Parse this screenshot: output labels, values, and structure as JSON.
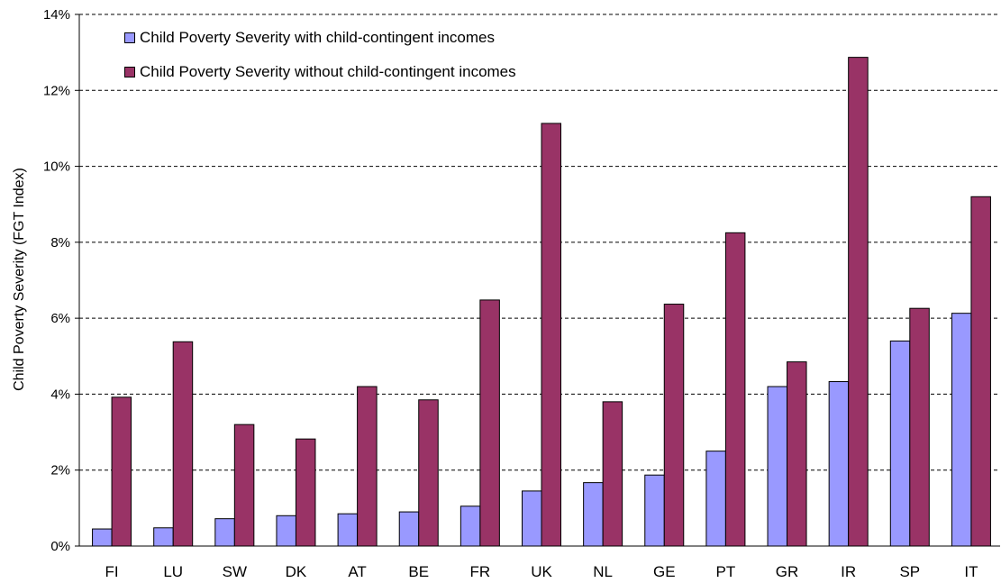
{
  "chart_data": {
    "type": "bar",
    "title": "",
    "xlabel": "",
    "ylabel": "Child Poverty Severity (FGT Index)",
    "ylim": [
      0,
      0.14
    ],
    "yticks": [
      "0%",
      "2%",
      "4%",
      "6%",
      "8%",
      "10%",
      "12%",
      "14%"
    ],
    "grid": "dashed horizontal",
    "legend_position": "top-left",
    "categories": [
      "FI",
      "LU",
      "SW",
      "DK",
      "AT",
      "BE",
      "FR",
      "UK",
      "NL",
      "GE",
      "PT",
      "GR",
      "IR",
      "SP",
      "IT"
    ],
    "series": [
      {
        "name": "Child Poverty Severity with child-contingent incomes",
        "color": "#9999ff",
        "values": [
          0.0045,
          0.0048,
          0.0072,
          0.008,
          0.0085,
          0.009,
          0.0105,
          0.0145,
          0.0167,
          0.0187,
          0.025,
          0.042,
          0.0433,
          0.054,
          0.0613
        ]
      },
      {
        "name": "Child Poverty Severity without child-contingent incomes",
        "color": "#993366",
        "values": [
          0.0392,
          0.0538,
          0.032,
          0.0282,
          0.042,
          0.0385,
          0.0648,
          0.1113,
          0.038,
          0.0637,
          0.0825,
          0.0485,
          0.1287,
          0.0626,
          0.092
        ]
      }
    ]
  }
}
